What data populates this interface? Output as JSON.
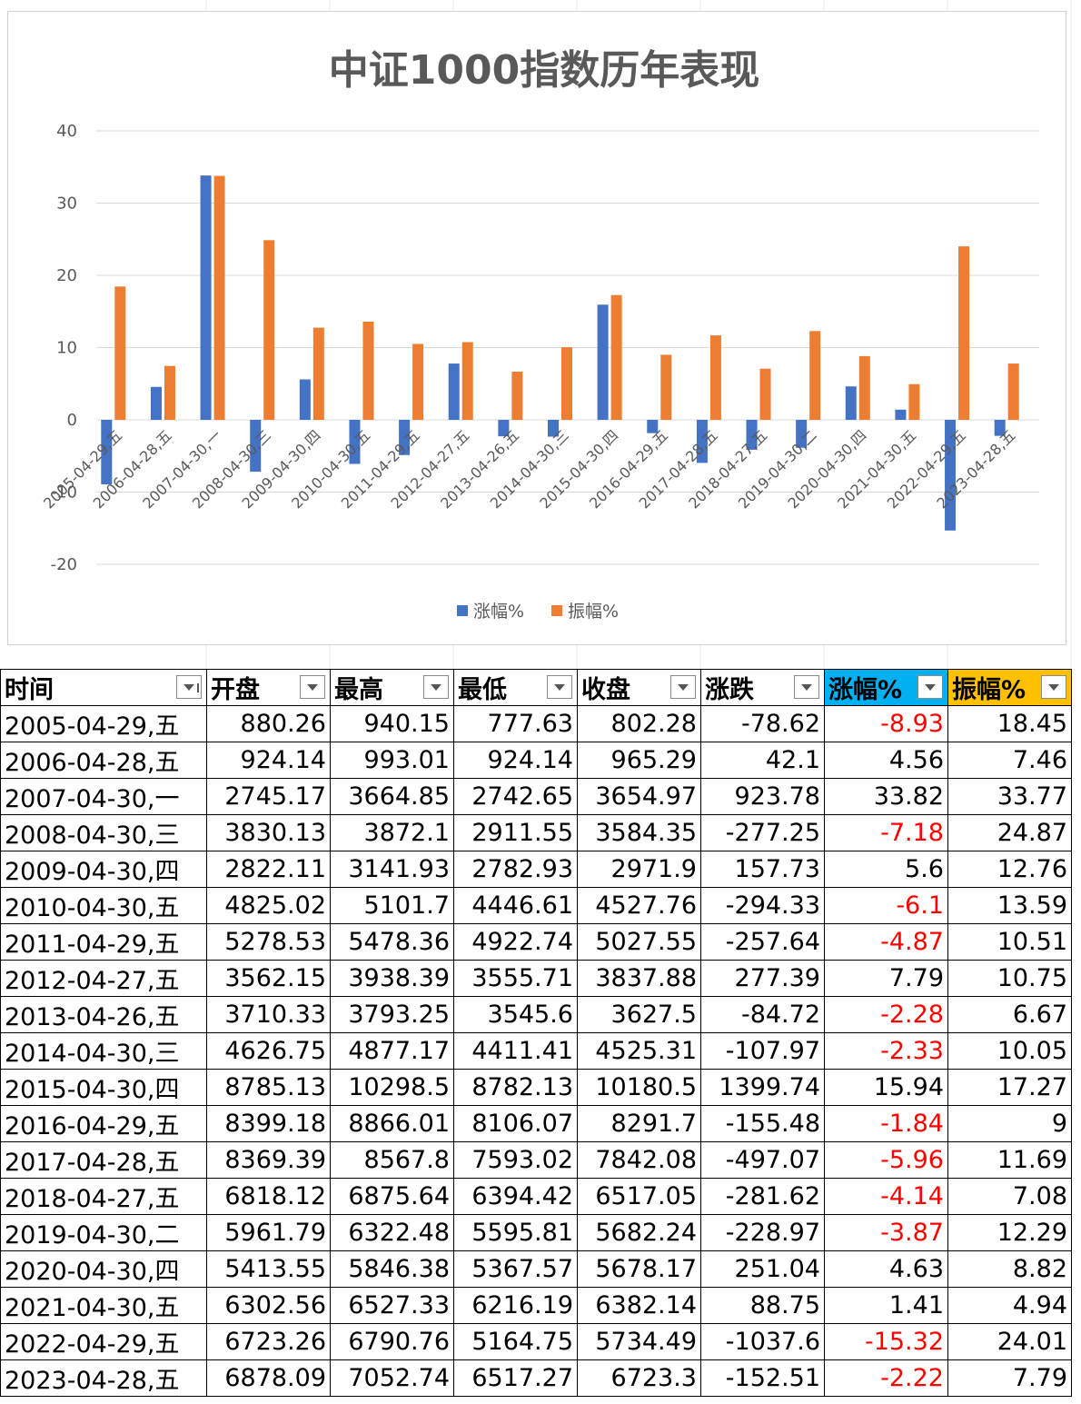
{
  "colors": {
    "rise": "#4472c4",
    "amplitude": "#ed7d31",
    "negative": "#ff0000",
    "header_blue": "#00b0f0",
    "header_gold": "#ffc000"
  },
  "chart_data": {
    "type": "bar",
    "title": "中证1000指数历年表现",
    "categories": [
      "2005-04-29,五",
      "2006-04-28,五",
      "2007-04-30,一",
      "2008-04-30,三",
      "2009-04-30,四",
      "2010-04-30,五",
      "2011-04-29,五",
      "2012-04-27,五",
      "2013-04-26,五",
      "2014-04-30,三",
      "2015-04-30,四",
      "2016-04-29,五",
      "2017-04-28,五",
      "2018-04-27,五",
      "2019-04-30,二",
      "2020-04-30,四",
      "2021-04-30,五",
      "2022-04-29,五",
      "2023-04-28,五"
    ],
    "series": [
      {
        "name": "涨幅%",
        "values": [
          -8.93,
          4.56,
          33.82,
          -7.18,
          5.6,
          -6.1,
          -4.87,
          7.79,
          -2.28,
          -2.33,
          15.94,
          -1.84,
          -5.96,
          -4.14,
          -3.87,
          4.63,
          1.41,
          -15.32,
          -2.22
        ]
      },
      {
        "name": "振幅%",
        "values": [
          18.45,
          7.46,
          33.77,
          24.87,
          12.76,
          13.59,
          10.51,
          10.75,
          6.67,
          10.05,
          17.27,
          9,
          11.69,
          7.08,
          12.29,
          8.82,
          4.94,
          24.01,
          7.79
        ]
      }
    ],
    "yticks": [
      "40",
      "30",
      "20",
      "10",
      "0",
      "-10",
      "-20"
    ],
    "ylim": [
      -20,
      40
    ],
    "legend": "bottom",
    "grid": true
  },
  "table": {
    "headers": [
      "时间",
      "开盘",
      "最高",
      "最低",
      "收盘",
      "涨跌",
      "涨幅%",
      "振幅%"
    ],
    "rows": [
      [
        "2005-04-29,五",
        "880.26",
        "940.15",
        "777.63",
        "802.28",
        "-78.62",
        "-8.93",
        "18.45"
      ],
      [
        "2006-04-28,五",
        "924.14",
        "993.01",
        "924.14",
        "965.29",
        "42.1",
        "4.56",
        "7.46"
      ],
      [
        "2007-04-30,一",
        "2745.17",
        "3664.85",
        "2742.65",
        "3654.97",
        "923.78",
        "33.82",
        "33.77"
      ],
      [
        "2008-04-30,三",
        "3830.13",
        "3872.1",
        "2911.55",
        "3584.35",
        "-277.25",
        "-7.18",
        "24.87"
      ],
      [
        "2009-04-30,四",
        "2822.11",
        "3141.93",
        "2782.93",
        "2971.9",
        "157.73",
        "5.6",
        "12.76"
      ],
      [
        "2010-04-30,五",
        "4825.02",
        "5101.7",
        "4446.61",
        "4527.76",
        "-294.33",
        "-6.1",
        "13.59"
      ],
      [
        "2011-04-29,五",
        "5278.53",
        "5478.36",
        "4922.74",
        "5027.55",
        "-257.64",
        "-4.87",
        "10.51"
      ],
      [
        "2012-04-27,五",
        "3562.15",
        "3938.39",
        "3555.71",
        "3837.88",
        "277.39",
        "7.79",
        "10.75"
      ],
      [
        "2013-04-26,五",
        "3710.33",
        "3793.25",
        "3545.6",
        "3627.5",
        "-84.72",
        "-2.28",
        "6.67"
      ],
      [
        "2014-04-30,三",
        "4626.75",
        "4877.17",
        "4411.41",
        "4525.31",
        "-107.97",
        "-2.33",
        "10.05"
      ],
      [
        "2015-04-30,四",
        "8785.13",
        "10298.5",
        "8782.13",
        "10180.5",
        "1399.74",
        "15.94",
        "17.27"
      ],
      [
        "2016-04-29,五",
        "8399.18",
        "8866.01",
        "8106.07",
        "8291.7",
        "-155.48",
        "-1.84",
        "9"
      ],
      [
        "2017-04-28,五",
        "8369.39",
        "8567.8",
        "7593.02",
        "7842.08",
        "-497.07",
        "-5.96",
        "11.69"
      ],
      [
        "2018-04-27,五",
        "6818.12",
        "6875.64",
        "6394.42",
        "6517.05",
        "-281.62",
        "-4.14",
        "7.08"
      ],
      [
        "2019-04-30,二",
        "5961.79",
        "6322.48",
        "5595.81",
        "5682.24",
        "-228.97",
        "-3.87",
        "12.29"
      ],
      [
        "2020-04-30,四",
        "5413.55",
        "5846.38",
        "5367.57",
        "5678.17",
        "251.04",
        "4.63",
        "8.82"
      ],
      [
        "2021-04-30,五",
        "6302.56",
        "6527.33",
        "6216.19",
        "6382.14",
        "88.75",
        "1.41",
        "4.94"
      ],
      [
        "2022-04-29,五",
        "6723.26",
        "6790.76",
        "5164.75",
        "5734.49",
        "-1037.6",
        "-15.32",
        "24.01"
      ],
      [
        "2023-04-28,五",
        "6878.09",
        "7052.74",
        "6517.27",
        "6723.3",
        "-152.51",
        "-2.22",
        "7.79"
      ]
    ]
  }
}
